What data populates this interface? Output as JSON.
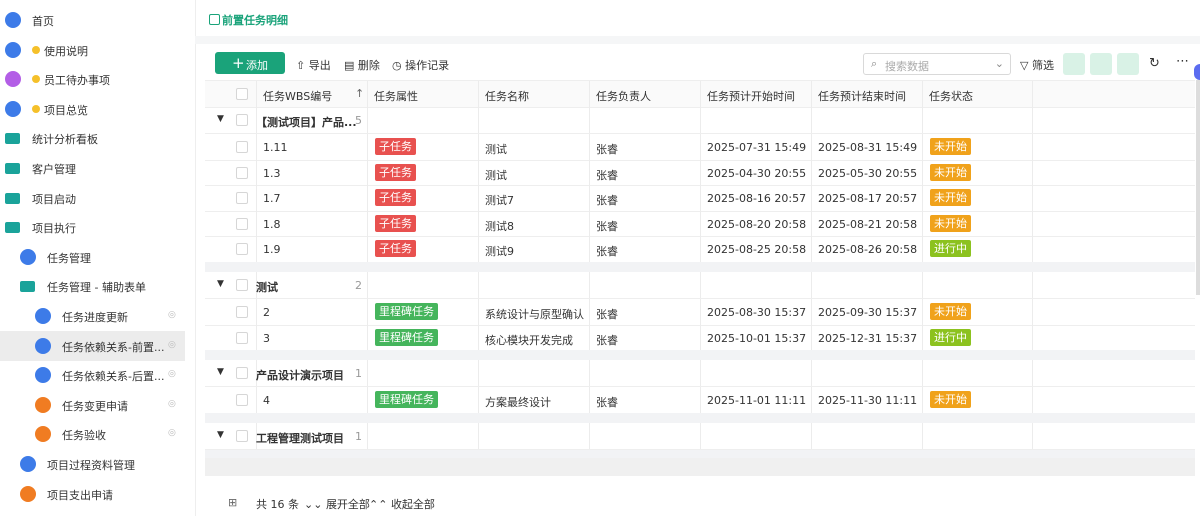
{
  "sidebar": {
    "items": [
      "首页",
      "使用说明",
      "员工待办事项",
      "项目总览",
      "统计分析看板",
      "客户管理",
      "项目启动",
      "项目执行",
      "任务管理",
      "任务管理 - 辅助表单",
      "任务进度更新",
      "任务依赖关系-前置...",
      "任务依赖关系-后置...",
      "任务变更申请",
      "任务验收",
      "项目过程资料管理",
      "项目支出申请"
    ]
  },
  "tab": "前置任务明细",
  "toolbar": {
    "add": "添加",
    "export": "导出",
    "delete": "删除",
    "log": "操作记录",
    "search_placeholder": "搜索数据",
    "filter": "筛选"
  },
  "table": {
    "columns": [
      "任务WBS编号",
      "任务属性",
      "任务名称",
      "任务负责人",
      "任务预计开始时间",
      "任务预计结束时间",
      "任务状态"
    ],
    "tag_colors": {
      "子任务": "#e8514f",
      "里程碑任务": "#45b55c",
      "未开始": "#f0a21b",
      "进行中": "#8cc21f"
    },
    "groups": [
      {
        "title": "【测试项目】产品...",
        "count": "5",
        "rows": [
          [
            "1.11",
            "子任务",
            "测试",
            "张睿",
            "2025-07-31 15:49",
            "2025-08-31 15:49",
            "未开始"
          ],
          [
            "1.3",
            "子任务",
            "测试",
            "张睿",
            "2025-04-30 20:55",
            "2025-05-30 20:55",
            "未开始"
          ],
          [
            "1.7",
            "子任务",
            "测试7",
            "张睿",
            "2025-08-16 20:57",
            "2025-08-17 20:57",
            "未开始"
          ],
          [
            "1.8",
            "子任务",
            "测试8",
            "张睿",
            "2025-08-20 20:58",
            "2025-08-21 20:58",
            "未开始"
          ],
          [
            "1.9",
            "子任务",
            "测试9",
            "张睿",
            "2025-08-25 20:58",
            "2025-08-26 20:58",
            "进行中"
          ]
        ]
      },
      {
        "title": "测试",
        "count": "2",
        "rows": [
          [
            "2",
            "里程碑任务",
            "系统设计与原型确认",
            "张睿",
            "2025-08-30 15:37",
            "2025-09-30 15:37",
            "未开始"
          ],
          [
            "3",
            "里程碑任务",
            "核心模块开发完成",
            "张睿",
            "2025-10-01 15:37",
            "2025-12-31 15:37",
            "进行中"
          ]
        ]
      },
      {
        "title": "产品设计演示项目",
        "count": "1",
        "rows": [
          [
            "4",
            "里程碑任务",
            "方案最终设计",
            "张睿",
            "2025-11-01 11:11",
            "2025-11-30 11:11",
            "未开始"
          ]
        ]
      },
      {
        "title": "工程管理测试项目",
        "count": "1",
        "rows": []
      }
    ]
  },
  "footer": {
    "total": "共 16 条",
    "expand": "展开全部",
    "collapse": "收起全部"
  }
}
